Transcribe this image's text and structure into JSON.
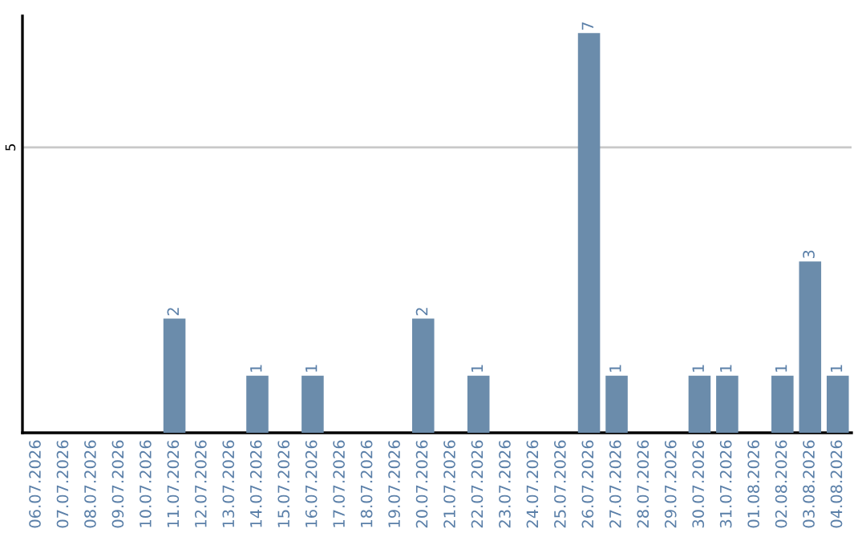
{
  "chart_data": {
    "type": "bar",
    "categories": [
      "06.07.2026",
      "07.07.2026",
      "08.07.2026",
      "09.07.2026",
      "10.07.2026",
      "11.07.2026",
      "12.07.2026",
      "13.07.2026",
      "14.07.2026",
      "15.07.2026",
      "16.07.2026",
      "17.07.2026",
      "18.07.2026",
      "19.07.2026",
      "20.07.2026",
      "21.07.2026",
      "22.07.2026",
      "23.07.2026",
      "24.07.2026",
      "25.07.2026",
      "26.07.2026",
      "27.07.2026",
      "28.07.2026",
      "29.07.2026",
      "30.07.2026",
      "31.07.2026",
      "01.08.2026",
      "02.08.2026",
      "03.08.2026",
      "04.08.2026"
    ],
    "values": [
      0,
      0,
      0,
      0,
      0,
      2,
      0,
      0,
      1,
      0,
      1,
      0,
      0,
      0,
      2,
      0,
      1,
      0,
      0,
      0,
      7,
      1,
      0,
      0,
      1,
      1,
      0,
      1,
      3,
      1
    ],
    "value_labels": [
      null,
      null,
      null,
      null,
      null,
      "2",
      null,
      null,
      "1",
      null,
      "1",
      null,
      null,
      null,
      "2",
      null,
      "1",
      null,
      null,
      null,
      "7",
      "1",
      null,
      null,
      "1",
      "1",
      null,
      "1",
      "3",
      "1"
    ],
    "color": "#6b8cab",
    "ylim": [
      0,
      7.3
    ],
    "yticks": [
      5
    ],
    "grid": "y"
  }
}
